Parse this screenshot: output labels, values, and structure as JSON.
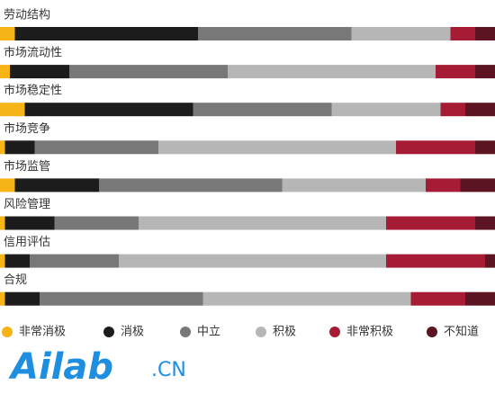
{
  "chart_data": {
    "type": "bar",
    "orientation": "horizontal",
    "stacked": true,
    "categories": [
      "劳动结构",
      "市场流动性",
      "市场稳定性",
      "市场竞争",
      "市场监管",
      "风险管理",
      "信用评估",
      "合规"
    ],
    "xlim": [
      0,
      100
    ],
    "series": [
      {
        "name": "非常消极",
        "color": "#f6b417",
        "values": [
          3,
          2,
          5,
          1,
          3,
          1,
          1,
          1
        ]
      },
      {
        "name": "消极",
        "color": "#1c1c1c",
        "values": [
          37,
          12,
          34,
          6,
          17,
          10,
          5,
          7
        ]
      },
      {
        "name": "中立",
        "color": "#787878",
        "values": [
          31,
          32,
          28,
          25,
          37,
          17,
          18,
          33
        ]
      },
      {
        "name": "积极",
        "color": "#b6b6b6",
        "values": [
          20,
          42,
          22,
          48,
          29,
          50,
          54,
          42
        ]
      },
      {
        "name": "非常积极",
        "color": "#a51c34",
        "values": [
          5,
          8,
          5,
          16,
          7,
          18,
          20,
          11
        ]
      },
      {
        "name": "不知道",
        "color": "#5c1422",
        "values": [
          4,
          4,
          6,
          4,
          7,
          4,
          2,
          6
        ]
      }
    ],
    "legend": "bottom"
  },
  "watermark": {
    "main": "Ailab",
    "suffix": ".CN"
  }
}
